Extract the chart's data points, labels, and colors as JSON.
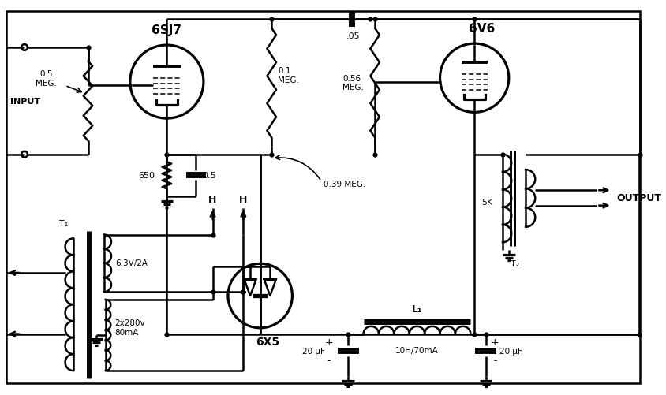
{
  "bg_color": "#ffffff",
  "line_color": "#000000",
  "tube_6SJ7_label": "6SJ7",
  "tube_6V6_label": "6V6",
  "tube_6X5_label": "6X5",
  "label_input": "INPUT",
  "label_output": "OUTPUT",
  "label_r1": "0.5\nMEG.",
  "label_r2": "650",
  "label_c1": "0.5",
  "label_r3": "0.1\nMEG.",
  "label_c2": ".05",
  "label_r4": "0.56\nMEG.",
  "label_r5": "0.39 MEG.",
  "label_r6": "5K",
  "label_t2": "T₂",
  "label_t1": "T₁",
  "label_l1": "L₁",
  "label_heater1": "6.3V/2A",
  "label_heater2": "2x280v\n80mA",
  "label_cap1": "20 μF",
  "label_cap2": "20 μF",
  "label_choke": "10H/70mA",
  "lw": 1.8
}
